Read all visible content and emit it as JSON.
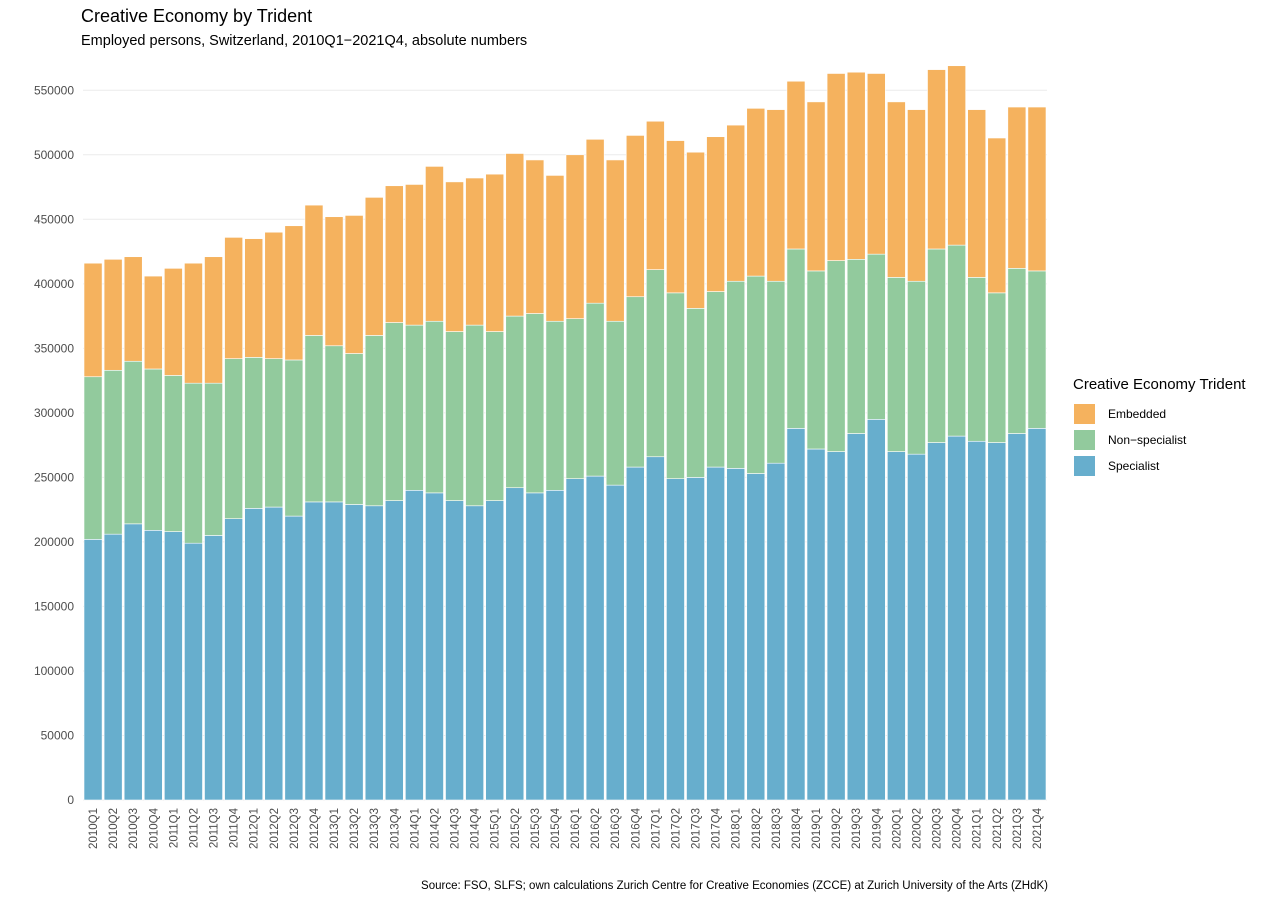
{
  "chart_data": {
    "type": "bar",
    "stacked": true,
    "title": "Creative Economy by Trident",
    "subtitle": "Employed persons, Switzerland, 2010Q1−2021Q4, absolute numbers",
    "source": "Source: FSO, SLFS; own calculations Zurich Centre for Creative Economies (ZCCE) at Zurich University of the Arts (ZHdK)",
    "xlabel": "",
    "ylabel": "",
    "ylim": [
      0,
      575000
    ],
    "yticks": [
      0,
      50000,
      100000,
      150000,
      200000,
      250000,
      300000,
      350000,
      400000,
      450000,
      500000,
      550000
    ],
    "grid": true,
    "legend_position": "right",
    "legend_title": "Creative Economy Trident",
    "categories": [
      "2010Q1",
      "2010Q2",
      "2010Q3",
      "2010Q4",
      "2011Q1",
      "2011Q2",
      "2011Q3",
      "2011Q4",
      "2012Q1",
      "2012Q2",
      "2012Q3",
      "2012Q4",
      "2013Q1",
      "2013Q2",
      "2013Q3",
      "2013Q4",
      "2014Q1",
      "2014Q2",
      "2014Q3",
      "2014Q4",
      "2015Q1",
      "2015Q2",
      "2015Q3",
      "2015Q4",
      "2016Q1",
      "2016Q2",
      "2016Q3",
      "2016Q4",
      "2017Q1",
      "2017Q2",
      "2017Q3",
      "2017Q4",
      "2018Q1",
      "2018Q2",
      "2018Q3",
      "2018Q4",
      "2019Q1",
      "2019Q2",
      "2019Q3",
      "2019Q4",
      "2020Q1",
      "2020Q2",
      "2020Q3",
      "2020Q4",
      "2021Q1",
      "2021Q2",
      "2021Q3",
      "2021Q4"
    ],
    "series": [
      {
        "name": "Specialist",
        "color": "#67aecd",
        "values": [
          202000,
          206000,
          214000,
          209000,
          208000,
          199000,
          205000,
          218000,
          226000,
          227000,
          220000,
          231000,
          231000,
          229000,
          228000,
          232000,
          240000,
          238000,
          232000,
          228000,
          232000,
          242000,
          238000,
          240000,
          249000,
          251000,
          244000,
          258000,
          266000,
          249000,
          250000,
          258000,
          257000,
          253000,
          261000,
          288000,
          272000,
          270000,
          284000,
          295000,
          270000,
          268000,
          277000,
          282000,
          278000,
          277000,
          284000,
          288000
        ]
      },
      {
        "name": "Non−specialist",
        "color": "#92ca9d",
        "values": [
          126000,
          127000,
          126000,
          125000,
          121000,
          124000,
          118000,
          124000,
          117000,
          115000,
          121000,
          129000,
          121000,
          117000,
          132000,
          138000,
          128000,
          133000,
          131000,
          140000,
          131000,
          133000,
          139000,
          131000,
          124000,
          134000,
          127000,
          132000,
          145000,
          144000,
          131000,
          136000,
          145000,
          153000,
          141000,
          139000,
          138000,
          148000,
          135000,
          128000,
          135000,
          134000,
          150000,
          148000,
          127000,
          116000,
          128000,
          122000
        ]
      },
      {
        "name": "Embedded",
        "color": "#f5b25e",
        "values": [
          88000,
          86000,
          81000,
          72000,
          83000,
          93000,
          98000,
          94000,
          92000,
          98000,
          104000,
          101000,
          100000,
          107000,
          107000,
          106000,
          109000,
          120000,
          116000,
          114000,
          122000,
          126000,
          119000,
          113000,
          127000,
          127000,
          125000,
          125000,
          115000,
          118000,
          121000,
          120000,
          121000,
          130000,
          133000,
          130000,
          131000,
          145000,
          145000,
          140000,
          136000,
          133000,
          139000,
          139000,
          130000,
          120000,
          125000,
          127000
        ]
      }
    ]
  }
}
